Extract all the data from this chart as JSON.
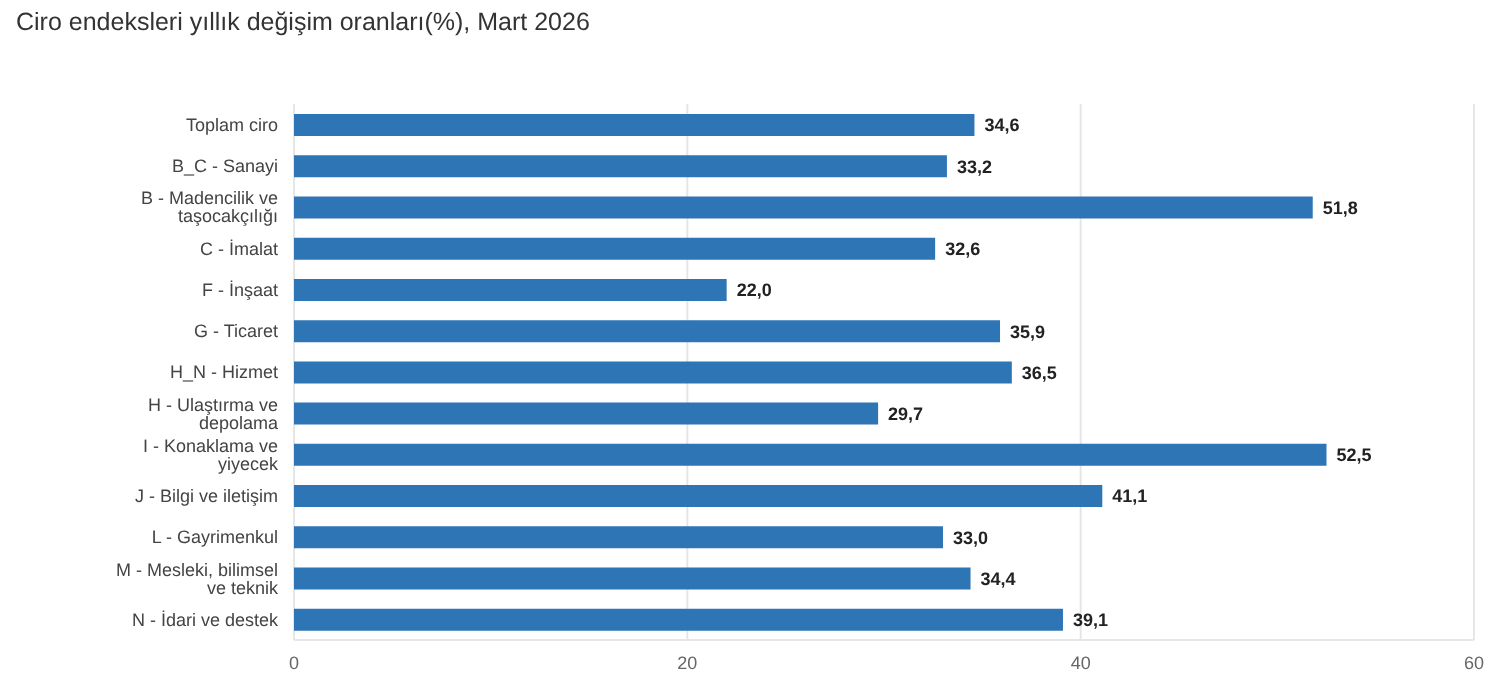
{
  "chart_data": {
    "type": "bar",
    "orientation": "horizontal",
    "title": "Ciro endeksleri yıllık değişim oranları(%), Mart 2026",
    "categories": [
      "Toplam ciro",
      "B_C - Sanayi",
      "B - Madencilik ve taşocakçılığı",
      "C - İmalat",
      "F - İnşaat",
      "G - Ticaret",
      "H_N - Hizmet",
      "H - Ulaştırma ve depolama",
      "I - Konaklama ve yiyecek",
      "J - Bilgi ve iletişim",
      "L - Gayrimenkul",
      "M - Mesleki, bilimsel ve teknik",
      "N - İdari ve destek"
    ],
    "values": [
      34.6,
      33.2,
      51.8,
      32.6,
      22.0,
      35.9,
      36.5,
      29.7,
      52.5,
      41.1,
      33.0,
      34.4,
      39.1
    ],
    "value_labels": [
      "34,6",
      "33,2",
      "51,8",
      "32,6",
      "22,0",
      "35,9",
      "36,5",
      "29,7",
      "52,5",
      "41,1",
      "33,0",
      "34,4",
      "39,1"
    ],
    "color": "#2e75b6",
    "xlim": [
      0,
      60
    ],
    "xticks": [
      0,
      20,
      40,
      60
    ],
    "grid": "x",
    "legend": false
  }
}
